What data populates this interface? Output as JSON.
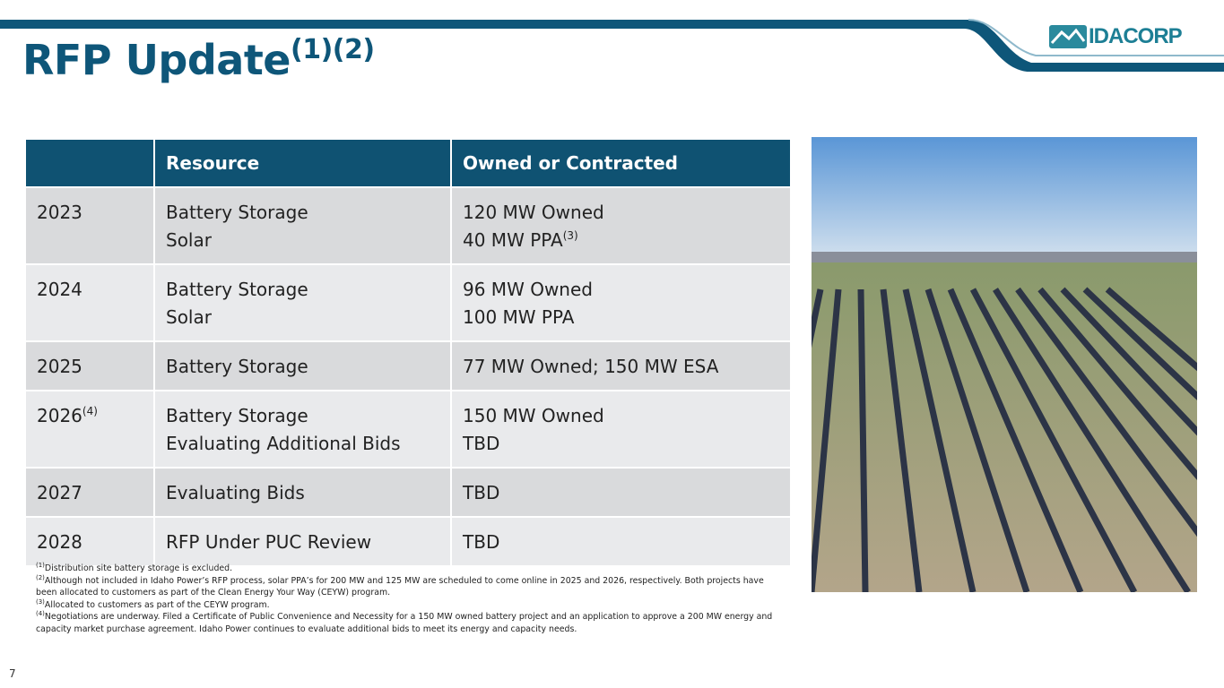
{
  "header": {
    "title": "RFP Update",
    "title_sup": "(1)(2)",
    "logo": "IDACORP"
  },
  "table": {
    "columns": [
      "Resource",
      "Owned or Contracted"
    ],
    "rows": [
      {
        "year": "2023",
        "resource": [
          "Battery Storage",
          "Solar"
        ],
        "owned": [
          {
            "text": "120 MW Owned"
          },
          {
            "text": "40 MW PPA",
            "sup": "(3)"
          }
        ]
      },
      {
        "year": "2024",
        "resource": [
          "Battery Storage",
          "Solar"
        ],
        "owned": [
          {
            "text": "96 MW Owned"
          },
          {
            "text": "100 MW PPA"
          }
        ]
      },
      {
        "year": "2025",
        "resource": [
          "Battery Storage"
        ],
        "owned": [
          {
            "text": "77 MW Owned; 150 MW ESA"
          }
        ]
      },
      {
        "year": "2026",
        "year_sup": "(4)",
        "resource": [
          "Battery Storage",
          "Evaluating Additional Bids"
        ],
        "owned": [
          {
            "text": "150 MW Owned"
          },
          {
            "text": "TBD"
          }
        ]
      },
      {
        "year": "2027",
        "resource": [
          "Evaluating Bids"
        ],
        "owned": [
          {
            "text": "TBD"
          }
        ]
      },
      {
        "year": "2028",
        "resource": [
          "RFP Under PUC Review"
        ],
        "owned": [
          {
            "text": "TBD"
          }
        ]
      }
    ]
  },
  "footnotes": [
    {
      "marker": "(1)",
      "text": "Distribution site battery storage is excluded."
    },
    {
      "marker": "(2)",
      "text": "Although not included in Idaho Power’s RFP process, solar PPA’s for 200 MW and 125 MW are scheduled to come online in 2025 and 2026, respectively. Both projects have been allocated to customers as part of the Clean Energy Your Way (CEYW) program."
    },
    {
      "marker": "(3)",
      "text": "Allocated to customers as part of the CEYW program."
    },
    {
      "marker": "(4)",
      "text": "Negotiations are underway. Filed a Certificate of Public Convenience and Necessity for a 150 MW owned battery project and an application to approve a 200 MW energy and capacity market purchase agreement. Idaho Power continues to evaluate additional bids to meet its energy and capacity needs."
    }
  ],
  "page_number": "7"
}
